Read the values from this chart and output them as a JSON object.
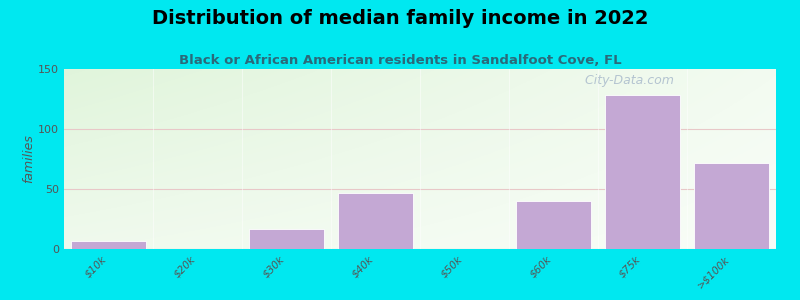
{
  "title": "Distribution of median family income in 2022",
  "subtitle": "Black or African American residents in Sandalfoot Cove, FL",
  "categories": [
    "$10k",
    "$20k",
    "$30k",
    "$40k",
    "$50k",
    "$60k",
    "$75k",
    ">$100k"
  ],
  "values": [
    7,
    0,
    17,
    47,
    0,
    40,
    128,
    72
  ],
  "bar_color": "#c4a8d4",
  "background_outer": "#00e8f0",
  "ylabel": "families",
  "ylim": [
    0,
    150
  ],
  "yticks": [
    0,
    50,
    100,
    150
  ],
  "title_fontsize": 14,
  "title_fontweight": "bold",
  "subtitle_fontsize": 9.5,
  "subtitle_color": "#2a6a7a",
  "watermark": "  City-Data.com",
  "watermark_fontsize": 9
}
